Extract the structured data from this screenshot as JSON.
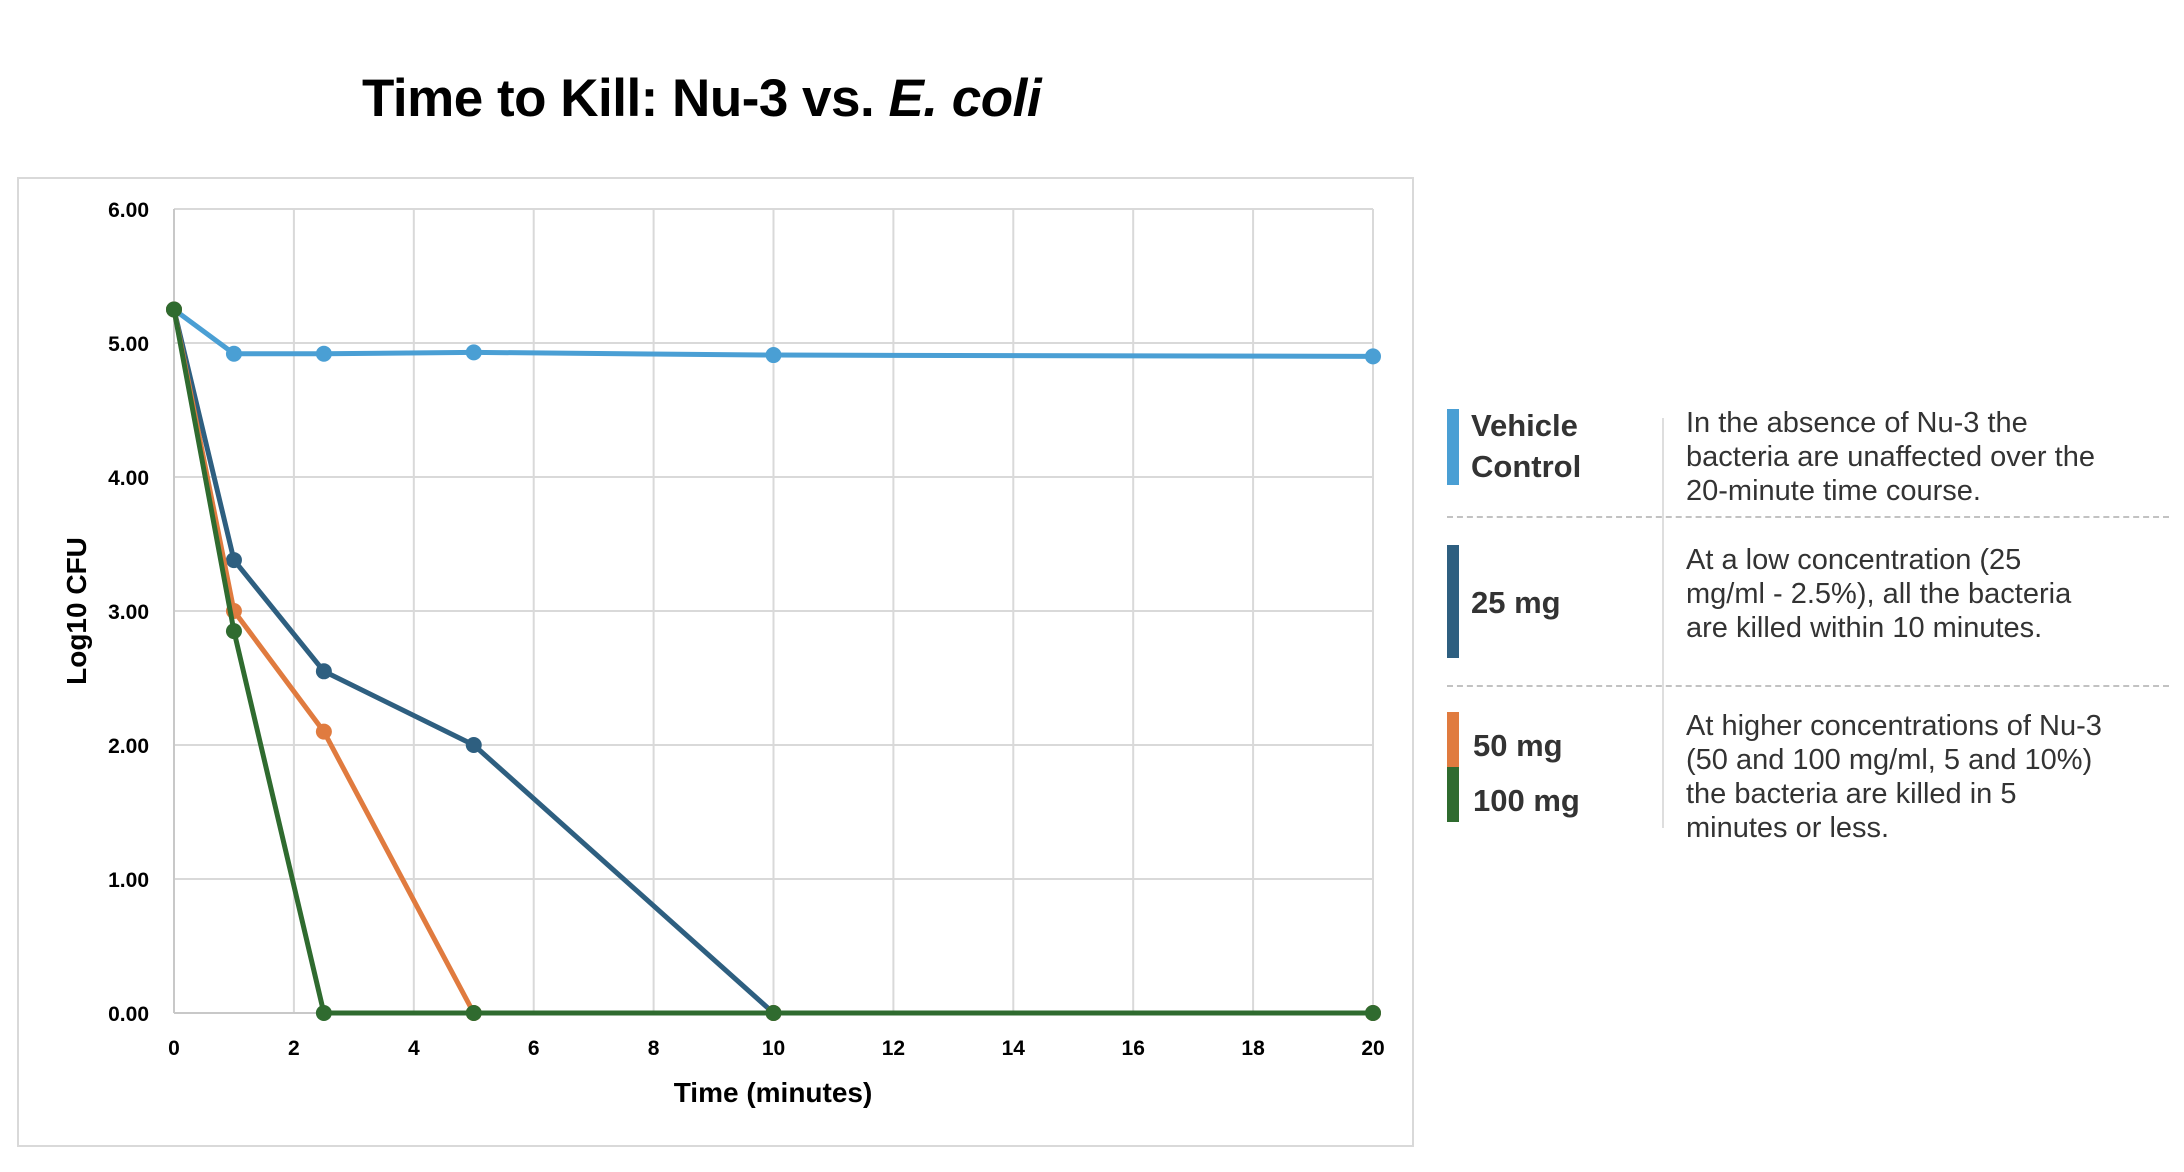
{
  "title": {
    "main": "Time to Kill: Nu-3 vs. ",
    "italic": "E. coli"
  },
  "chart_data": {
    "type": "line",
    "title": "Time to Kill: Nu-3 vs. E. coli",
    "xlabel": "Time (minutes)",
    "ylabel": "Log10 CFU",
    "xlim": [
      0,
      20
    ],
    "ylim": [
      0,
      6
    ],
    "x_ticks": [
      "0",
      "2",
      "4",
      "6",
      "8",
      "10",
      "12",
      "14",
      "16",
      "18",
      "20"
    ],
    "x_tick_values": [
      0,
      2,
      4,
      6,
      8,
      10,
      12,
      14,
      16,
      18,
      20
    ],
    "y_ticks": [
      "0.00",
      "1.00",
      "2.00",
      "3.00",
      "4.00",
      "5.00",
      "6.00"
    ],
    "y_tick_values": [
      0,
      1,
      2,
      3,
      4,
      5,
      6
    ],
    "grid": true,
    "x": [
      0,
      1,
      2.5,
      5,
      10,
      20
    ],
    "series": [
      {
        "name": "Vehicle Control",
        "color": "#4a9fd4",
        "values": [
          5.25,
          4.92,
          4.92,
          4.93,
          4.91,
          4.9
        ]
      },
      {
        "name": "25 mg",
        "color": "#2e5f80",
        "values": [
          5.25,
          3.38,
          2.55,
          2.0,
          0,
          0
        ]
      },
      {
        "name": "50 mg",
        "color": "#e07b3f",
        "values": [
          5.25,
          3.0,
          2.1,
          0,
          0,
          0
        ]
      },
      {
        "name": "100 mg",
        "color": "#2f6b2f",
        "values": [
          5.25,
          2.85,
          0,
          0,
          0,
          0
        ]
      }
    ],
    "legend": "right"
  },
  "legend": {
    "vehicle": {
      "label_line1": "Vehicle",
      "label_line2": "Control",
      "color": "#4a9fd4",
      "description": "In the absence of Nu-3 the\nbacteria are unaffected over the\n20-minute time course."
    },
    "mg25": {
      "label": "25 mg",
      "color": "#2e5f80",
      "description": "At a low concentration (25\nmg/ml - 2.5%), all the bacteria\nare killed within 10 minutes."
    },
    "mg50": {
      "label": "50 mg",
      "color": "#e07b3f"
    },
    "mg100": {
      "label": "100 mg",
      "color": "#2f6b2f"
    },
    "high_description": "At higher concentrations of Nu-3\n(50 and 100 mg/ml, 5 and 10%)\nthe bacteria are killed in 5\nminutes or less."
  }
}
